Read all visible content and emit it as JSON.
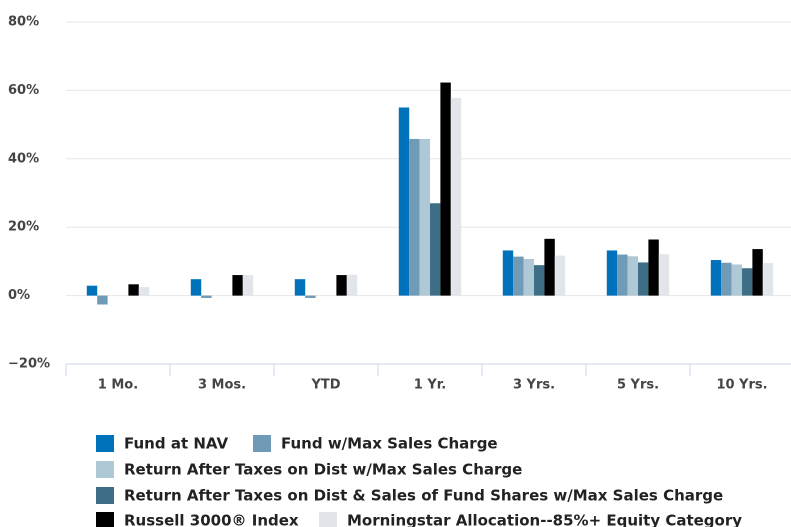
{
  "chart_data": {
    "type": "bar",
    "categories": [
      "1 Mo.",
      "3 Mos.",
      "YTD",
      "1 Yr.",
      "3 Yrs.",
      "5 Yrs.",
      "10 Yrs."
    ],
    "series": [
      {
        "name": "Fund at NAV",
        "color": "#0072bc",
        "values": [
          2.9,
          4.8,
          4.8,
          55.0,
          13.2,
          13.2,
          10.4
        ]
      },
      {
        "name": "Fund w/Max Sales Charge",
        "color": "#6f9bb6",
        "values": [
          -2.6,
          -0.7,
          -0.7,
          45.8,
          11.4,
          12.0,
          9.6
        ]
      },
      {
        "name": "Return After Taxes on Dist w/Max Sales Charge",
        "color": "#aec8d6",
        "values": [
          null,
          null,
          null,
          45.8,
          10.7,
          11.5,
          9.1
        ]
      },
      {
        "name": "Return After Taxes on Dist & Sales of Fund Shares w/Max Sales Charge",
        "color": "#3d6e85",
        "values": [
          null,
          null,
          null,
          27.0,
          8.9,
          9.7,
          8.0
        ]
      },
      {
        "name": "Russell 3000® Index",
        "color": "#000000",
        "values": [
          3.3,
          6.0,
          6.0,
          62.3,
          16.6,
          16.4,
          13.6
        ]
      },
      {
        "name": "Morningstar Allocation--85%+ Equity Category",
        "color": "#e2e5e9",
        "values": [
          2.5,
          6.0,
          6.1,
          57.8,
          11.7,
          12.1,
          9.5
        ]
      }
    ],
    "ylim": [
      -20,
      80
    ],
    "yticks": [
      {
        "value": -20,
        "label": "−20%"
      },
      {
        "value": 0,
        "label": "0%"
      },
      {
        "value": 20,
        "label": "20%"
      },
      {
        "value": 40,
        "label": "40%"
      },
      {
        "value": 60,
        "label": "60%"
      },
      {
        "value": 80,
        "label": "80%"
      }
    ],
    "grid": true
  }
}
